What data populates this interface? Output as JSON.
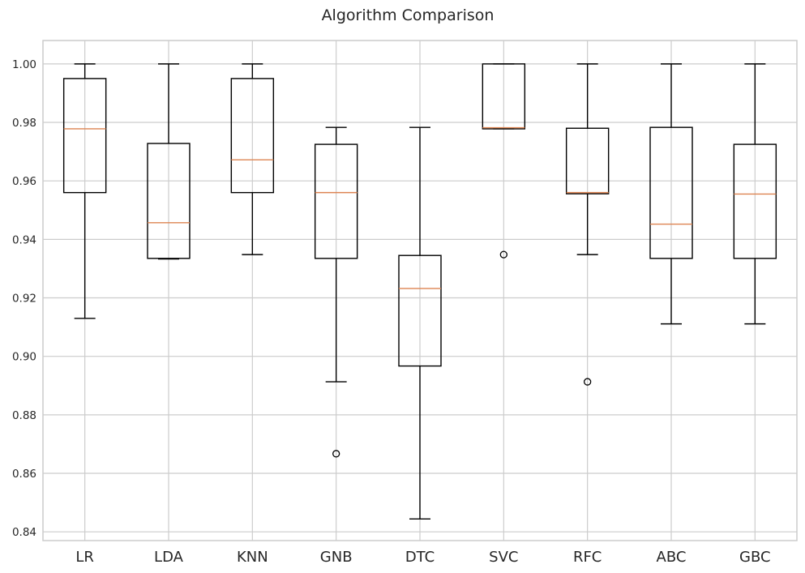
{
  "chart_data": {
    "type": "box",
    "title": "Algorithm Comparison",
    "xlabel": "",
    "ylabel": "",
    "ylim": [
      0.837,
      1.008
    ],
    "yticks": [
      0.84,
      0.86,
      0.88,
      0.9,
      0.92,
      0.94,
      0.96,
      0.98,
      1.0
    ],
    "ytick_labels": [
      "0.84",
      "0.86",
      "0.88",
      "0.90",
      "0.92",
      "0.94",
      "0.96",
      "0.98",
      "1.00"
    ],
    "grid": true,
    "colors": {
      "box": "#000000",
      "median": "#dd8452",
      "grid": "#cccccc",
      "frame": "#cccccc"
    },
    "categories": [
      "LR",
      "LDA",
      "KNN",
      "GNB",
      "DTC",
      "SVC",
      "RFC",
      "ABC",
      "GBC"
    ],
    "boxes": [
      {
        "label": "LR",
        "whislo": 0.913,
        "q1": 0.956,
        "med": 0.9778,
        "q3": 0.995,
        "whishi": 1.0,
        "fliers": []
      },
      {
        "label": "LDA",
        "whislo": 0.9333,
        "q1": 0.9335,
        "med": 0.9457,
        "q3": 0.9728,
        "whishi": 1.0,
        "fliers": []
      },
      {
        "label": "KNN",
        "whislo": 0.9348,
        "q1": 0.956,
        "med": 0.9672,
        "q3": 0.995,
        "whishi": 1.0,
        "fliers": []
      },
      {
        "label": "GNB",
        "whislo": 0.8913,
        "q1": 0.9335,
        "med": 0.956,
        "q3": 0.9725,
        "whishi": 0.9783,
        "fliers": [
          0.8667
        ]
      },
      {
        "label": "DTC",
        "whislo": 0.8444,
        "q1": 0.8967,
        "med": 0.9232,
        "q3": 0.9345,
        "whishi": 0.9783,
        "fliers": []
      },
      {
        "label": "SVC",
        "whislo": 0.9778,
        "q1": 0.9778,
        "med": 0.9782,
        "q3": 1.0,
        "whishi": 1.0,
        "fliers": [
          0.9348
        ]
      },
      {
        "label": "RFC",
        "whislo": 0.9348,
        "q1": 0.9556,
        "med": 0.956,
        "q3": 0.978,
        "whishi": 1.0,
        "fliers": [
          0.8913
        ]
      },
      {
        "label": "ABC",
        "whislo": 0.9111,
        "q1": 0.9335,
        "med": 0.9452,
        "q3": 0.9783,
        "whishi": 1.0,
        "fliers": []
      },
      {
        "label": "GBC",
        "whislo": 0.9111,
        "q1": 0.9335,
        "med": 0.9555,
        "q3": 0.9725,
        "whishi": 1.0,
        "fliers": []
      }
    ]
  }
}
